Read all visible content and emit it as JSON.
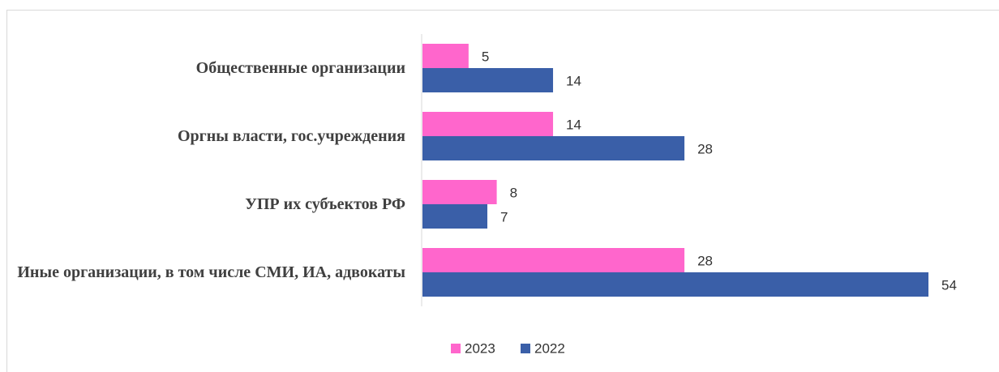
{
  "chart_data": {
    "type": "bar",
    "orientation": "horizontal",
    "categories": [
      "Общественные организации",
      "Оргны власти, гос.учреждения",
      "УПР их субъектов РФ",
      "Иные организации, в том числе СМИ, ИА, адвокаты"
    ],
    "series": [
      {
        "name": "2023",
        "color": "#ff66cc",
        "values": [
          5,
          14,
          8,
          28
        ]
      },
      {
        "name": "2022",
        "color": "#3a5fa8",
        "values": [
          14,
          28,
          7,
          54
        ]
      }
    ],
    "legend": "bottom"
  }
}
